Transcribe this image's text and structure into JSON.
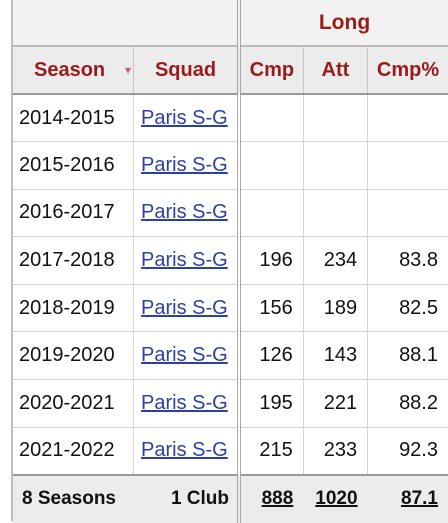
{
  "table": {
    "group_header": "Long",
    "headers": {
      "season": "Season",
      "squad": "Squad",
      "cmp": "Cmp",
      "att": "Att",
      "cmp_pct": "Cmp%"
    },
    "rows": [
      {
        "season": "2014-2015",
        "squad": "Paris S-G",
        "cmp": "",
        "att": "",
        "cmp_pct": ""
      },
      {
        "season": "2015-2016",
        "squad": "Paris S-G",
        "cmp": "",
        "att": "",
        "cmp_pct": ""
      },
      {
        "season": "2016-2017",
        "squad": "Paris S-G",
        "cmp": "",
        "att": "",
        "cmp_pct": ""
      },
      {
        "season": "2017-2018",
        "squad": "Paris S-G",
        "cmp": "196",
        "att": "234",
        "cmp_pct": "83.8"
      },
      {
        "season": "2018-2019",
        "squad": "Paris S-G",
        "cmp": "156",
        "att": "189",
        "cmp_pct": "82.5"
      },
      {
        "season": "2019-2020",
        "squad": "Paris S-G",
        "cmp": "126",
        "att": "143",
        "cmp_pct": "88.1"
      },
      {
        "season": "2020-2021",
        "squad": "Paris S-G",
        "cmp": "195",
        "att": "221",
        "cmp_pct": "88.2"
      },
      {
        "season": "2021-2022",
        "squad": "Paris S-G",
        "cmp": "215",
        "att": "233",
        "cmp_pct": "92.3"
      }
    ],
    "footer": {
      "season": "8 Seasons",
      "squad": "1 Club",
      "cmp": "888",
      "att": "1020",
      "cmp_pct": "87.1"
    }
  }
}
